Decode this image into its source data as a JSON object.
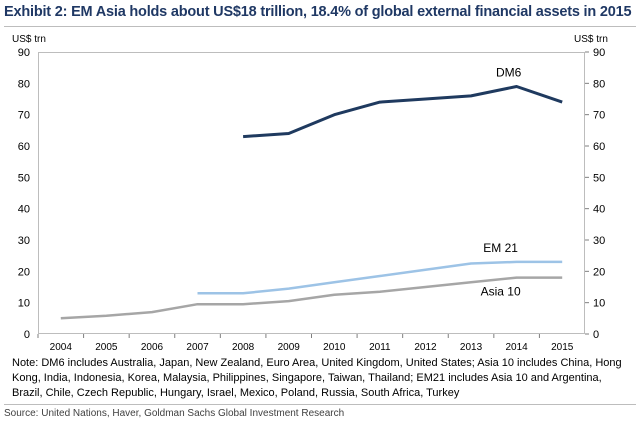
{
  "title": "Exhibit 2: EM Asia holds about US$18 trillion, 18.4% of global external financial assets in 2015",
  "note": "Note: DM6 includes Australia, Japan, New Zealand, Euro Area, United Kingdom, United States; Asia 10 includes China, Hong Kong, India, Indonesia, Korea, Malaysia, Philippines, Singapore, Taiwan, Thailand; EM21 includes Asia 10 and Argentina, Brazil, Chile, Czech Republic, Hungary, Israel, Mexico, Poland, Russia, South Africa, Turkey",
  "source": "Source: United Nations, Haver, Goldman Sachs Global Investment Research",
  "chart_data": {
    "type": "line",
    "ylabel_left": "US$ trn",
    "ylabel_right": "US$ trn",
    "ylim": [
      0,
      90
    ],
    "yticks": [
      0,
      10,
      20,
      30,
      40,
      50,
      60,
      70,
      80,
      90
    ],
    "categories": [
      "2004",
      "2005",
      "2006",
      "2007",
      "2008",
      "2009",
      "2010",
      "2011",
      "2012",
      "2013",
      "2014",
      "2015"
    ],
    "grid": false,
    "series": [
      {
        "name": "DM6",
        "color": "#1f3a5f",
        "values": [
          null,
          null,
          null,
          null,
          63,
          64,
          70,
          74,
          75,
          76,
          79,
          74
        ]
      },
      {
        "name": "EM 21",
        "color": "#9dc3e6",
        "values": [
          null,
          null,
          null,
          13,
          13,
          14.5,
          16.5,
          18.5,
          20.5,
          22.5,
          23,
          23
        ]
      },
      {
        "name": "Asia 10",
        "color": "#a6a6a6",
        "values": [
          5,
          5.8,
          7,
          9.5,
          9.5,
          10.5,
          12.5,
          13.5,
          15,
          16.5,
          18,
          18
        ]
      }
    ]
  }
}
